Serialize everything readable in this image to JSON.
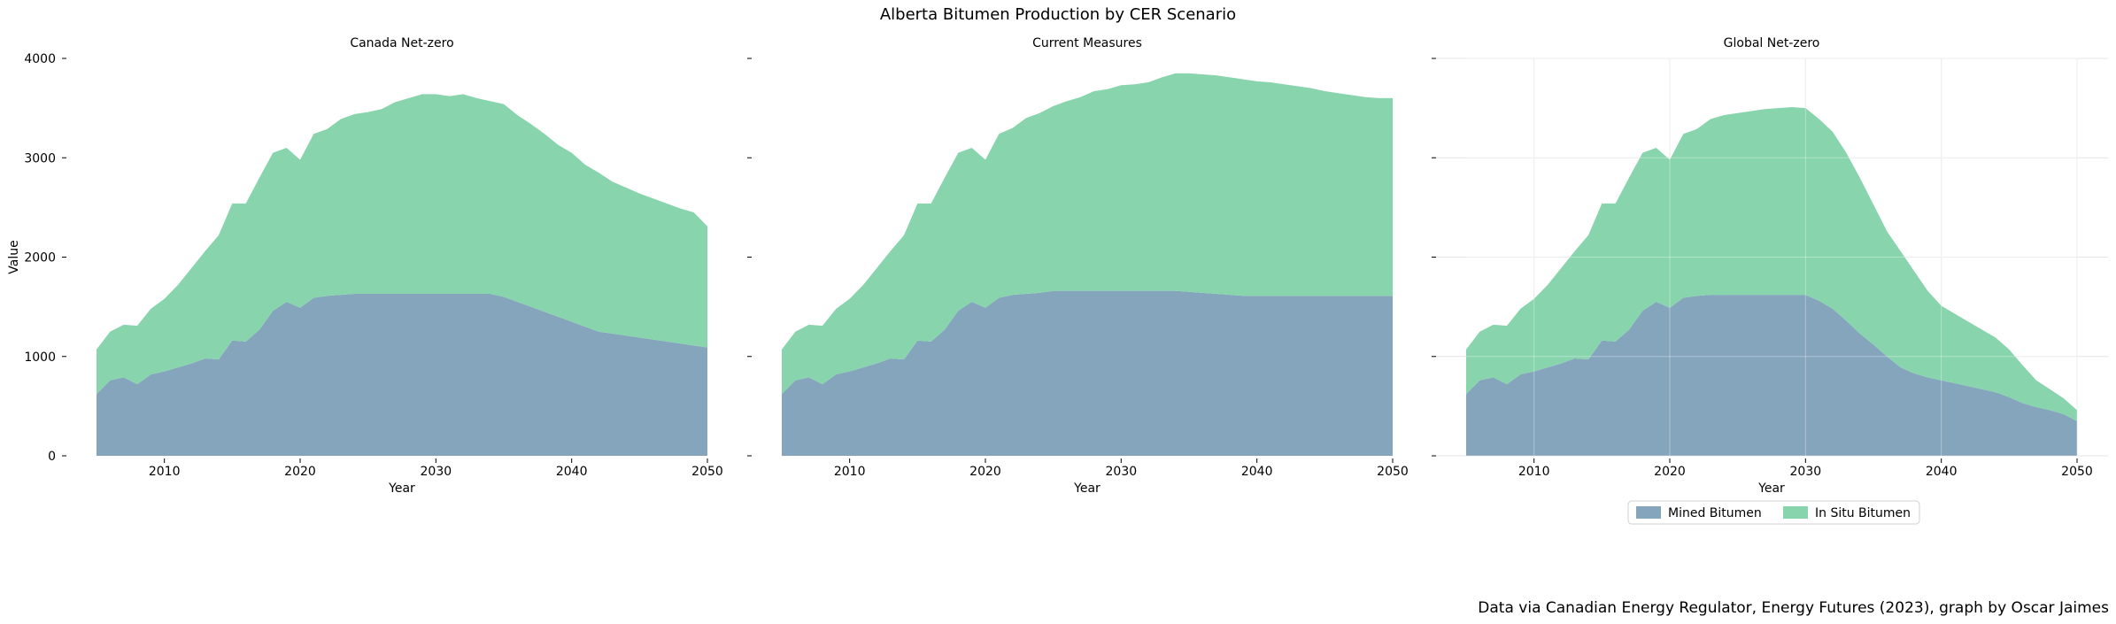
{
  "figure": {
    "title": "Alberta Bitumen Production by CER Scenario",
    "source_note": "Data via Canadian Energy Regulator, Energy Futures (2023), graph by Oscar Jaimes"
  },
  "colors": {
    "mined": "#84a5bc",
    "insitu": "#88d4ad"
  },
  "legend": {
    "items": [
      "Mined Bitumen",
      "In Situ Bitumen"
    ],
    "placement": "below third panel"
  },
  "chart_data": [
    {
      "type": "area",
      "stacked": true,
      "title": "Canada Net-zero",
      "xlabel": "Year",
      "ylabel": "Value",
      "xlim": [
        2005,
        2050
      ],
      "ylim": [
        0,
        4000
      ],
      "xticks": [
        2010,
        2020,
        2030,
        2040,
        2050
      ],
      "yticks": [
        0,
        1000,
        2000,
        3000,
        4000
      ],
      "grid": false,
      "x": [
        2005,
        2006,
        2007,
        2008,
        2009,
        2010,
        2011,
        2012,
        2013,
        2014,
        2015,
        2016,
        2017,
        2018,
        2019,
        2020,
        2021,
        2022,
        2023,
        2024,
        2025,
        2026,
        2027,
        2028,
        2029,
        2030,
        2031,
        2032,
        2033,
        2034,
        2035,
        2036,
        2037,
        2038,
        2039,
        2040,
        2041,
        2042,
        2043,
        2044,
        2045,
        2046,
        2047,
        2048,
        2049,
        2050
      ],
      "series": [
        {
          "name": "Mined Bitumen",
          "values": [
            620,
            760,
            790,
            720,
            820,
            850,
            890,
            930,
            980,
            970,
            1160,
            1150,
            1270,
            1460,
            1550,
            1490,
            1590,
            1610,
            1620,
            1630,
            1630,
            1630,
            1630,
            1630,
            1630,
            1630,
            1630,
            1630,
            1630,
            1630,
            1600,
            1550,
            1500,
            1450,
            1400,
            1350,
            1300,
            1250,
            1230,
            1210,
            1190,
            1170,
            1150,
            1130,
            1110,
            1090
          ]
        },
        {
          "name": "In Situ Bitumen",
          "values": [
            450,
            490,
            530,
            590,
            660,
            730,
            830,
            960,
            1080,
            1250,
            1380,
            1390,
            1530,
            1590,
            1550,
            1490,
            1650,
            1680,
            1770,
            1810,
            1830,
            1860,
            1930,
            1970,
            2010,
            2010,
            1990,
            2010,
            1970,
            1940,
            1940,
            1880,
            1840,
            1790,
            1730,
            1700,
            1630,
            1600,
            1530,
            1490,
            1450,
            1420,
            1390,
            1360,
            1340,
            1220
          ]
        }
      ]
    },
    {
      "type": "area",
      "stacked": true,
      "title": "Current Measures",
      "xlabel": "Year",
      "xlim": [
        2005,
        2050
      ],
      "ylim": [
        0,
        4000
      ],
      "xticks": [
        2010,
        2020,
        2030,
        2040,
        2050
      ],
      "grid": false,
      "x": [
        2005,
        2006,
        2007,
        2008,
        2009,
        2010,
        2011,
        2012,
        2013,
        2014,
        2015,
        2016,
        2017,
        2018,
        2019,
        2020,
        2021,
        2022,
        2023,
        2024,
        2025,
        2026,
        2027,
        2028,
        2029,
        2030,
        2031,
        2032,
        2033,
        2034,
        2035,
        2036,
        2037,
        2038,
        2039,
        2040,
        2041,
        2042,
        2043,
        2044,
        2045,
        2046,
        2047,
        2048,
        2049,
        2050
      ],
      "series": [
        {
          "name": "Mined Bitumen",
          "values": [
            620,
            760,
            790,
            720,
            820,
            850,
            890,
            930,
            980,
            970,
            1160,
            1150,
            1270,
            1460,
            1550,
            1490,
            1590,
            1620,
            1630,
            1640,
            1660,
            1660,
            1660,
            1660,
            1660,
            1660,
            1660,
            1660,
            1660,
            1660,
            1650,
            1640,
            1630,
            1620,
            1610,
            1610,
            1610,
            1610,
            1610,
            1610,
            1610,
            1610,
            1610,
            1610,
            1610,
            1610
          ]
        },
        {
          "name": "In Situ Bitumen",
          "values": [
            450,
            490,
            530,
            590,
            660,
            730,
            830,
            960,
            1080,
            1250,
            1380,
            1390,
            1530,
            1590,
            1550,
            1490,
            1650,
            1680,
            1770,
            1810,
            1860,
            1910,
            1950,
            2010,
            2030,
            2070,
            2080,
            2100,
            2150,
            2190,
            2200,
            2200,
            2200,
            2190,
            2180,
            2160,
            2150,
            2130,
            2110,
            2090,
            2060,
            2040,
            2020,
            2000,
            1990,
            1990
          ]
        }
      ]
    },
    {
      "type": "area",
      "stacked": true,
      "title": "Global Net-zero",
      "xlabel": "Year",
      "xlim": [
        2005,
        2050
      ],
      "ylim": [
        0,
        4000
      ],
      "xticks": [
        2010,
        2020,
        2030,
        2040,
        2050
      ],
      "grid": true,
      "x": [
        2005,
        2006,
        2007,
        2008,
        2009,
        2010,
        2011,
        2012,
        2013,
        2014,
        2015,
        2016,
        2017,
        2018,
        2019,
        2020,
        2021,
        2022,
        2023,
        2024,
        2025,
        2026,
        2027,
        2028,
        2029,
        2030,
        2031,
        2032,
        2033,
        2034,
        2035,
        2036,
        2037,
        2038,
        2039,
        2040,
        2041,
        2042,
        2043,
        2044,
        2045,
        2046,
        2047,
        2048,
        2049,
        2050
      ],
      "series": [
        {
          "name": "Mined Bitumen",
          "values": [
            620,
            760,
            790,
            720,
            820,
            850,
            890,
            930,
            980,
            970,
            1160,
            1150,
            1270,
            1460,
            1550,
            1490,
            1590,
            1610,
            1620,
            1620,
            1620,
            1620,
            1620,
            1620,
            1620,
            1620,
            1560,
            1480,
            1360,
            1230,
            1120,
            1000,
            890,
            830,
            790,
            760,
            730,
            700,
            670,
            640,
            590,
            530,
            490,
            460,
            420,
            350
          ]
        },
        {
          "name": "In Situ Bitumen",
          "values": [
            450,
            490,
            530,
            590,
            660,
            730,
            830,
            960,
            1080,
            1250,
            1380,
            1390,
            1530,
            1590,
            1550,
            1490,
            1650,
            1680,
            1770,
            1810,
            1830,
            1850,
            1870,
            1880,
            1890,
            1880,
            1830,
            1780,
            1690,
            1570,
            1410,
            1260,
            1170,
            1030,
            870,
            750,
            700,
            650,
            600,
            550,
            480,
            380,
            270,
            210,
            160,
            110
          ]
        }
      ]
    }
  ]
}
